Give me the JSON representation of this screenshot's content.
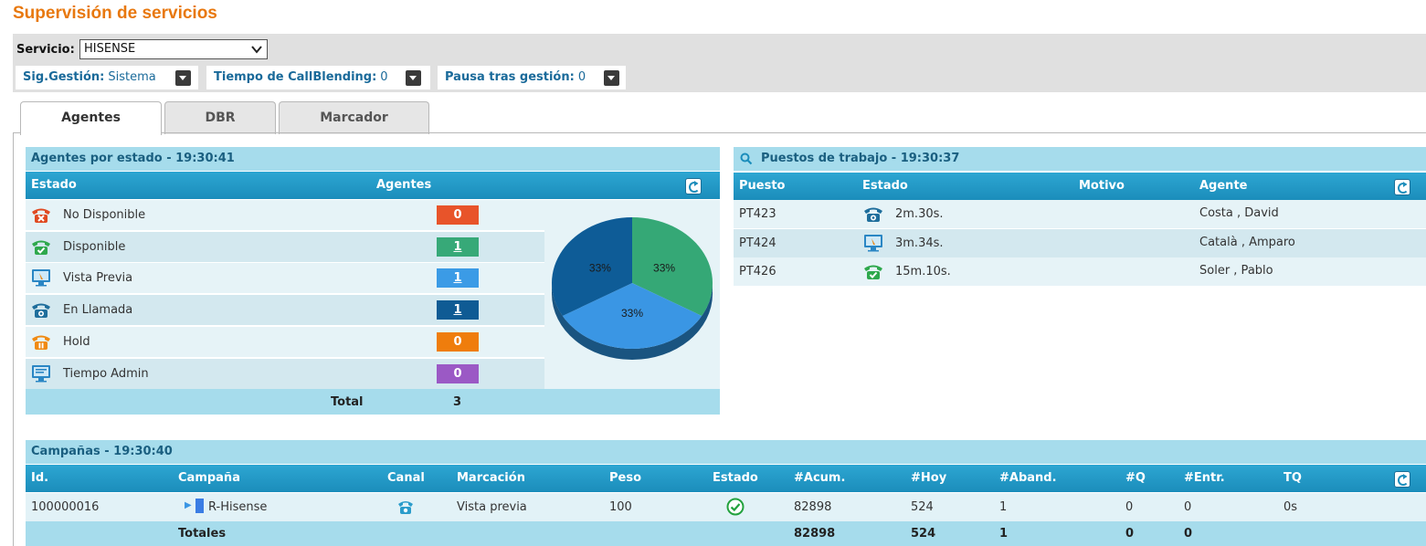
{
  "page": {
    "title": "Supervisión de servicios"
  },
  "service": {
    "label": "Servicio:",
    "selected": "HISENSE",
    "options": [
      {
        "label": "Sig.Gestión:",
        "value": "Sistema"
      },
      {
        "label": "Tiempo de CallBlending:",
        "value": "0"
      },
      {
        "label": "Pausa tras gestión:",
        "value": "0"
      }
    ]
  },
  "tabs": [
    {
      "label": "Agentes",
      "active": true
    },
    {
      "label": "DBR",
      "active": false
    },
    {
      "label": "Marcador",
      "active": false
    }
  ],
  "agents_by_state": {
    "title": "Agentes por estado - 19:30:41",
    "columns": [
      "Estado",
      "Agentes"
    ],
    "rows": [
      {
        "state": "No Disponible",
        "count": "0",
        "icon": "phone-unavailable-icon",
        "color": "#e8542a",
        "link": false
      },
      {
        "state": "Disponible",
        "count": "1",
        "icon": "phone-available-icon",
        "color": "#37a978",
        "link": true
      },
      {
        "state": "Vista Previa",
        "count": "1",
        "icon": "preview-monitor-icon",
        "color": "#3b9be6",
        "link": true
      },
      {
        "state": "En Llamada",
        "count": "1",
        "icon": "phone-in-call-icon",
        "color": "#0f5b94",
        "link": true
      },
      {
        "state": "Hold",
        "count": "0",
        "icon": "phone-hold-icon",
        "color": "#ef7d0c",
        "link": false
      },
      {
        "state": "Tiempo Admin",
        "count": "0",
        "icon": "admin-monitor-icon",
        "color": "#9b59c5",
        "link": false
      }
    ],
    "total_label": "Total",
    "total": "3"
  },
  "chart_data": {
    "type": "pie",
    "categories": [
      "Disponible",
      "Vista Previa",
      "En Llamada"
    ],
    "values": [
      33,
      33,
      33
    ],
    "colors": [
      "#35a876",
      "#3a96e4",
      "#0e5c97"
    ],
    "labels": [
      "33%",
      "33%",
      "33%"
    ]
  },
  "workstations": {
    "title": "Puestos de trabajo - 19:30:37",
    "columns": [
      "Puesto",
      "Estado",
      "Motivo",
      "Agente"
    ],
    "rows": [
      {
        "post": "PT423",
        "icon": "phone-in-call-icon",
        "time": "2m.30s.",
        "reason": "",
        "agent": "Costa , David"
      },
      {
        "post": "PT424",
        "icon": "preview-monitor-icon",
        "time": "3m.34s.",
        "reason": "",
        "agent": "Català , Amparo"
      },
      {
        "post": "PT426",
        "icon": "phone-available-icon",
        "time": "15m.10s.",
        "reason": "",
        "agent": "Soler , Pablo"
      }
    ]
  },
  "campaigns": {
    "title": "Campañas - 19:30:40",
    "columns": [
      "Id.",
      "Campaña",
      "Canal",
      "Marcación",
      "Peso",
      "Estado",
      "#Acum.",
      "#Hoy",
      "#Aband.",
      "#Q",
      "#Entr.",
      "TQ"
    ],
    "rows": [
      {
        "id": "100000016",
        "name": "R-Hisense",
        "dialing": "Vista previa",
        "weight": "100",
        "acum": "82898",
        "today": "524",
        "aband": "1",
        "q": "0",
        "entr": "0",
        "tq": "0s"
      }
    ],
    "totals": {
      "label": "Totales",
      "acum": "82898",
      "today": "524",
      "aband": "1",
      "q": "0",
      "entr": "0"
    }
  }
}
